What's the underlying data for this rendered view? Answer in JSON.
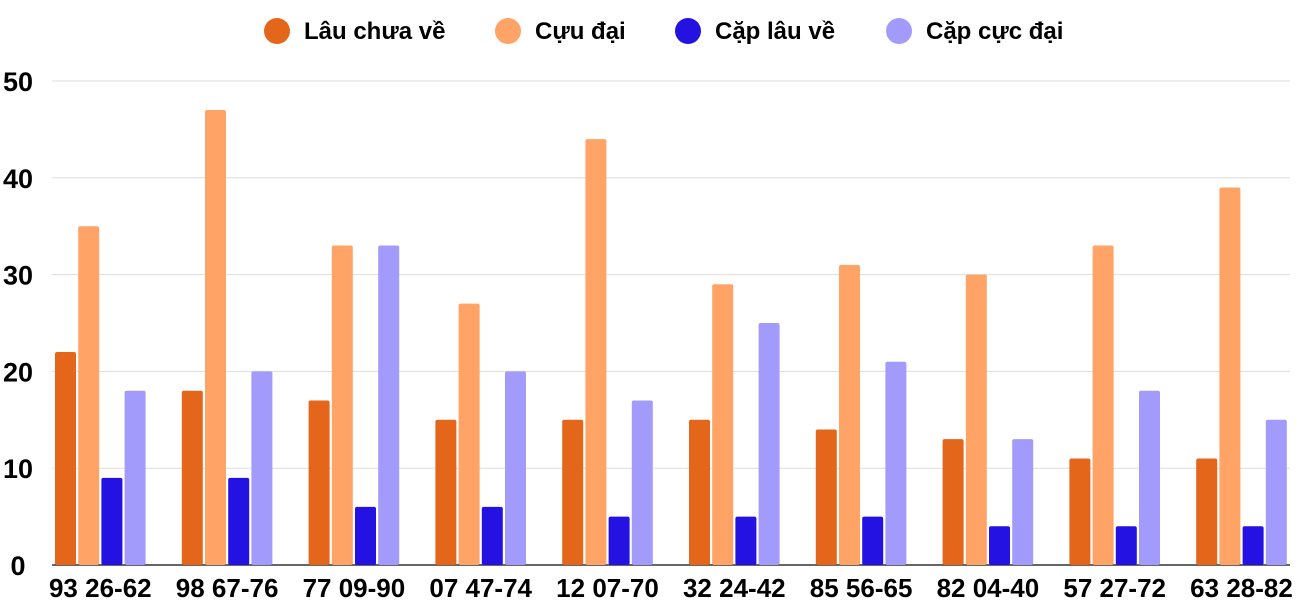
{
  "chart_data": {
    "type": "bar",
    "categories": [
      "93 26-62",
      "98 67-76",
      "77 09-90",
      "07 47-74",
      "12 07-70",
      "32 24-42",
      "85 56-65",
      "82 04-40",
      "57 27-72",
      "63 28-82"
    ],
    "series": [
      {
        "name": "Lâu chưa về",
        "color": "#e3661a",
        "values": [
          22,
          18,
          17,
          15,
          15,
          15,
          14,
          13,
          11,
          11
        ]
      },
      {
        "name": "Cựu đại",
        "color": "#ffa367",
        "values": [
          35,
          47,
          33,
          27,
          44,
          29,
          31,
          30,
          33,
          39
        ]
      },
      {
        "name": "Cặp lâu về",
        "color": "#2412e2",
        "values": [
          9,
          9,
          6,
          6,
          5,
          5,
          5,
          4,
          4,
          4
        ]
      },
      {
        "name": "Cặp cực đại",
        "color": "#a29bfc",
        "values": [
          18,
          20,
          33,
          20,
          17,
          25,
          21,
          13,
          18,
          15
        ]
      }
    ],
    "yticks": [
      "0",
      "10",
      "20",
      "30",
      "40",
      "50"
    ],
    "ylim": [
      0,
      50
    ],
    "grid": true,
    "legend_position": "top"
  }
}
